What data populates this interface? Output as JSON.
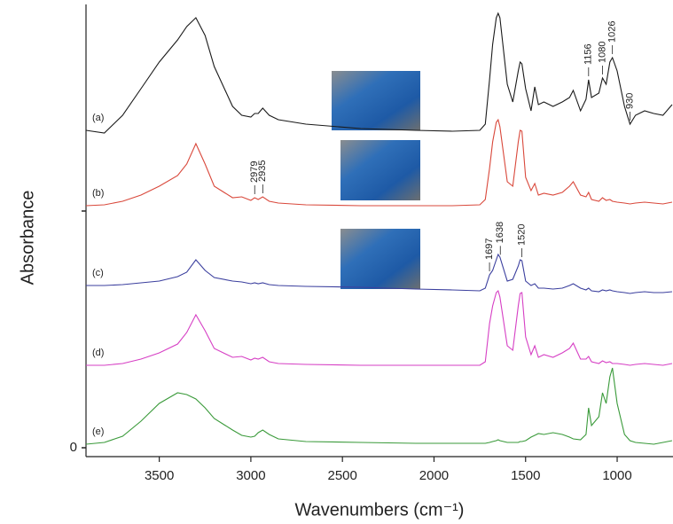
{
  "chart_data": {
    "type": "line",
    "xlabel": "Wavenumbers (cm⁻¹)",
    "ylabel": "Absorbance",
    "xlim": [
      3900,
      700
    ],
    "xticks": [
      3500,
      3000,
      2500,
      2000,
      1500,
      1000
    ],
    "ylim": [
      -0.1,
      5
    ],
    "yticks": [
      0,
      {
        "value": 2.67,
        "label": null
      }
    ],
    "x": [
      3900,
      3800,
      3700,
      3600,
      3500,
      3400,
      3350,
      3300,
      3250,
      3200,
      3100,
      3050,
      3000,
      2979,
      2960,
      2935,
      2900,
      2850,
      2700,
      2400,
      2100,
      1900,
      1750,
      1720,
      1697,
      1680,
      1660,
      1650,
      1640,
      1600,
      1570,
      1540,
      1530,
      1520,
      1500,
      1470,
      1450,
      1430,
      1400,
      1350,
      1300,
      1260,
      1240,
      1200,
      1170,
      1156,
      1140,
      1100,
      1080,
      1060,
      1040,
      1026,
      1000,
      960,
      930,
      900,
      850,
      800,
      750,
      700
    ],
    "series": [
      {
        "name": "(a)",
        "color": "#1a1a1a",
        "peak_labels": [
          1156,
          1080,
          1026,
          930
        ],
        "values": [
          3.58,
          3.55,
          3.75,
          4.05,
          4.35,
          4.6,
          4.75,
          4.85,
          4.65,
          4.3,
          3.85,
          3.75,
          3.73,
          3.77,
          3.77,
          3.83,
          3.75,
          3.7,
          3.65,
          3.6,
          3.58,
          3.57,
          3.58,
          3.65,
          4.15,
          4.55,
          4.85,
          4.9,
          4.85,
          4.1,
          3.9,
          4.25,
          4.35,
          4.33,
          4.05,
          3.8,
          4.07,
          3.87,
          3.9,
          3.85,
          3.9,
          3.95,
          4.03,
          3.8,
          3.93,
          4.15,
          3.95,
          4.0,
          4.17,
          4.1,
          4.35,
          4.4,
          4.25,
          3.85,
          3.65,
          3.75,
          3.8,
          3.77,
          3.75,
          3.87
        ]
      },
      {
        "name": "(b)",
        "color": "#d9483b",
        "peak_labels": [
          2979,
          2935
        ],
        "values": [
          2.73,
          2.74,
          2.78,
          2.85,
          2.95,
          3.07,
          3.2,
          3.43,
          3.2,
          2.95,
          2.82,
          2.83,
          2.79,
          2.82,
          2.8,
          2.83,
          2.78,
          2.76,
          2.74,
          2.73,
          2.73,
          2.73,
          2.74,
          2.8,
          3.15,
          3.45,
          3.67,
          3.7,
          3.62,
          3.0,
          2.95,
          3.45,
          3.58,
          3.57,
          3.05,
          2.9,
          2.98,
          2.85,
          2.87,
          2.85,
          2.88,
          2.95,
          3.0,
          2.85,
          2.83,
          2.88,
          2.8,
          2.78,
          2.82,
          2.79,
          2.8,
          2.78,
          2.77,
          2.76,
          2.75,
          2.76,
          2.77,
          2.76,
          2.75,
          2.77
        ]
      },
      {
        "name": "(c)",
        "color": "#3b3f9e",
        "peak_labels": [
          1697,
          1638,
          1520
        ],
        "values": [
          1.83,
          1.83,
          1.84,
          1.86,
          1.88,
          1.93,
          1.98,
          2.12,
          2.0,
          1.92,
          1.88,
          1.87,
          1.85,
          1.86,
          1.85,
          1.86,
          1.84,
          1.83,
          1.82,
          1.81,
          1.79,
          1.78,
          1.77,
          1.8,
          1.95,
          2.0,
          2.12,
          2.18,
          2.15,
          1.88,
          1.9,
          2.05,
          2.12,
          2.11,
          1.88,
          1.83,
          1.85,
          1.8,
          1.8,
          1.79,
          1.8,
          1.83,
          1.85,
          1.8,
          1.78,
          1.8,
          1.77,
          1.76,
          1.78,
          1.77,
          1.78,
          1.77,
          1.76,
          1.75,
          1.74,
          1.75,
          1.76,
          1.75,
          1.75,
          1.76
        ]
      },
      {
        "name": "(d)",
        "color": "#d63fc4",
        "values": [
          0.93,
          0.93,
          0.95,
          1.0,
          1.07,
          1.17,
          1.3,
          1.5,
          1.32,
          1.12,
          1.02,
          1.03,
          0.99,
          1.01,
          1.0,
          1.02,
          0.97,
          0.95,
          0.94,
          0.93,
          0.93,
          0.93,
          0.93,
          0.97,
          1.4,
          1.6,
          1.75,
          1.77,
          1.7,
          1.15,
          1.1,
          1.6,
          1.74,
          1.75,
          1.25,
          1.05,
          1.15,
          1.02,
          1.05,
          1.02,
          1.07,
          1.12,
          1.18,
          1.0,
          1.0,
          1.03,
          0.97,
          0.95,
          0.98,
          0.96,
          0.97,
          0.95,
          0.95,
          0.94,
          0.93,
          0.94,
          0.95,
          0.94,
          0.93,
          0.95
        ]
      },
      {
        "name": "(e)",
        "color": "#3a9a3a",
        "values": [
          0.04,
          0.06,
          0.13,
          0.3,
          0.5,
          0.62,
          0.6,
          0.55,
          0.45,
          0.33,
          0.2,
          0.14,
          0.12,
          0.13,
          0.17,
          0.2,
          0.15,
          0.1,
          0.07,
          0.06,
          0.05,
          0.05,
          0.05,
          0.05,
          0.06,
          0.07,
          0.08,
          0.09,
          0.08,
          0.06,
          0.06,
          0.06,
          0.07,
          0.07,
          0.08,
          0.12,
          0.14,
          0.16,
          0.15,
          0.17,
          0.15,
          0.12,
          0.1,
          0.09,
          0.15,
          0.45,
          0.25,
          0.35,
          0.62,
          0.5,
          0.8,
          0.9,
          0.5,
          0.15,
          0.08,
          0.06,
          0.05,
          0.04,
          0.06,
          0.08
        ]
      }
    ]
  }
}
